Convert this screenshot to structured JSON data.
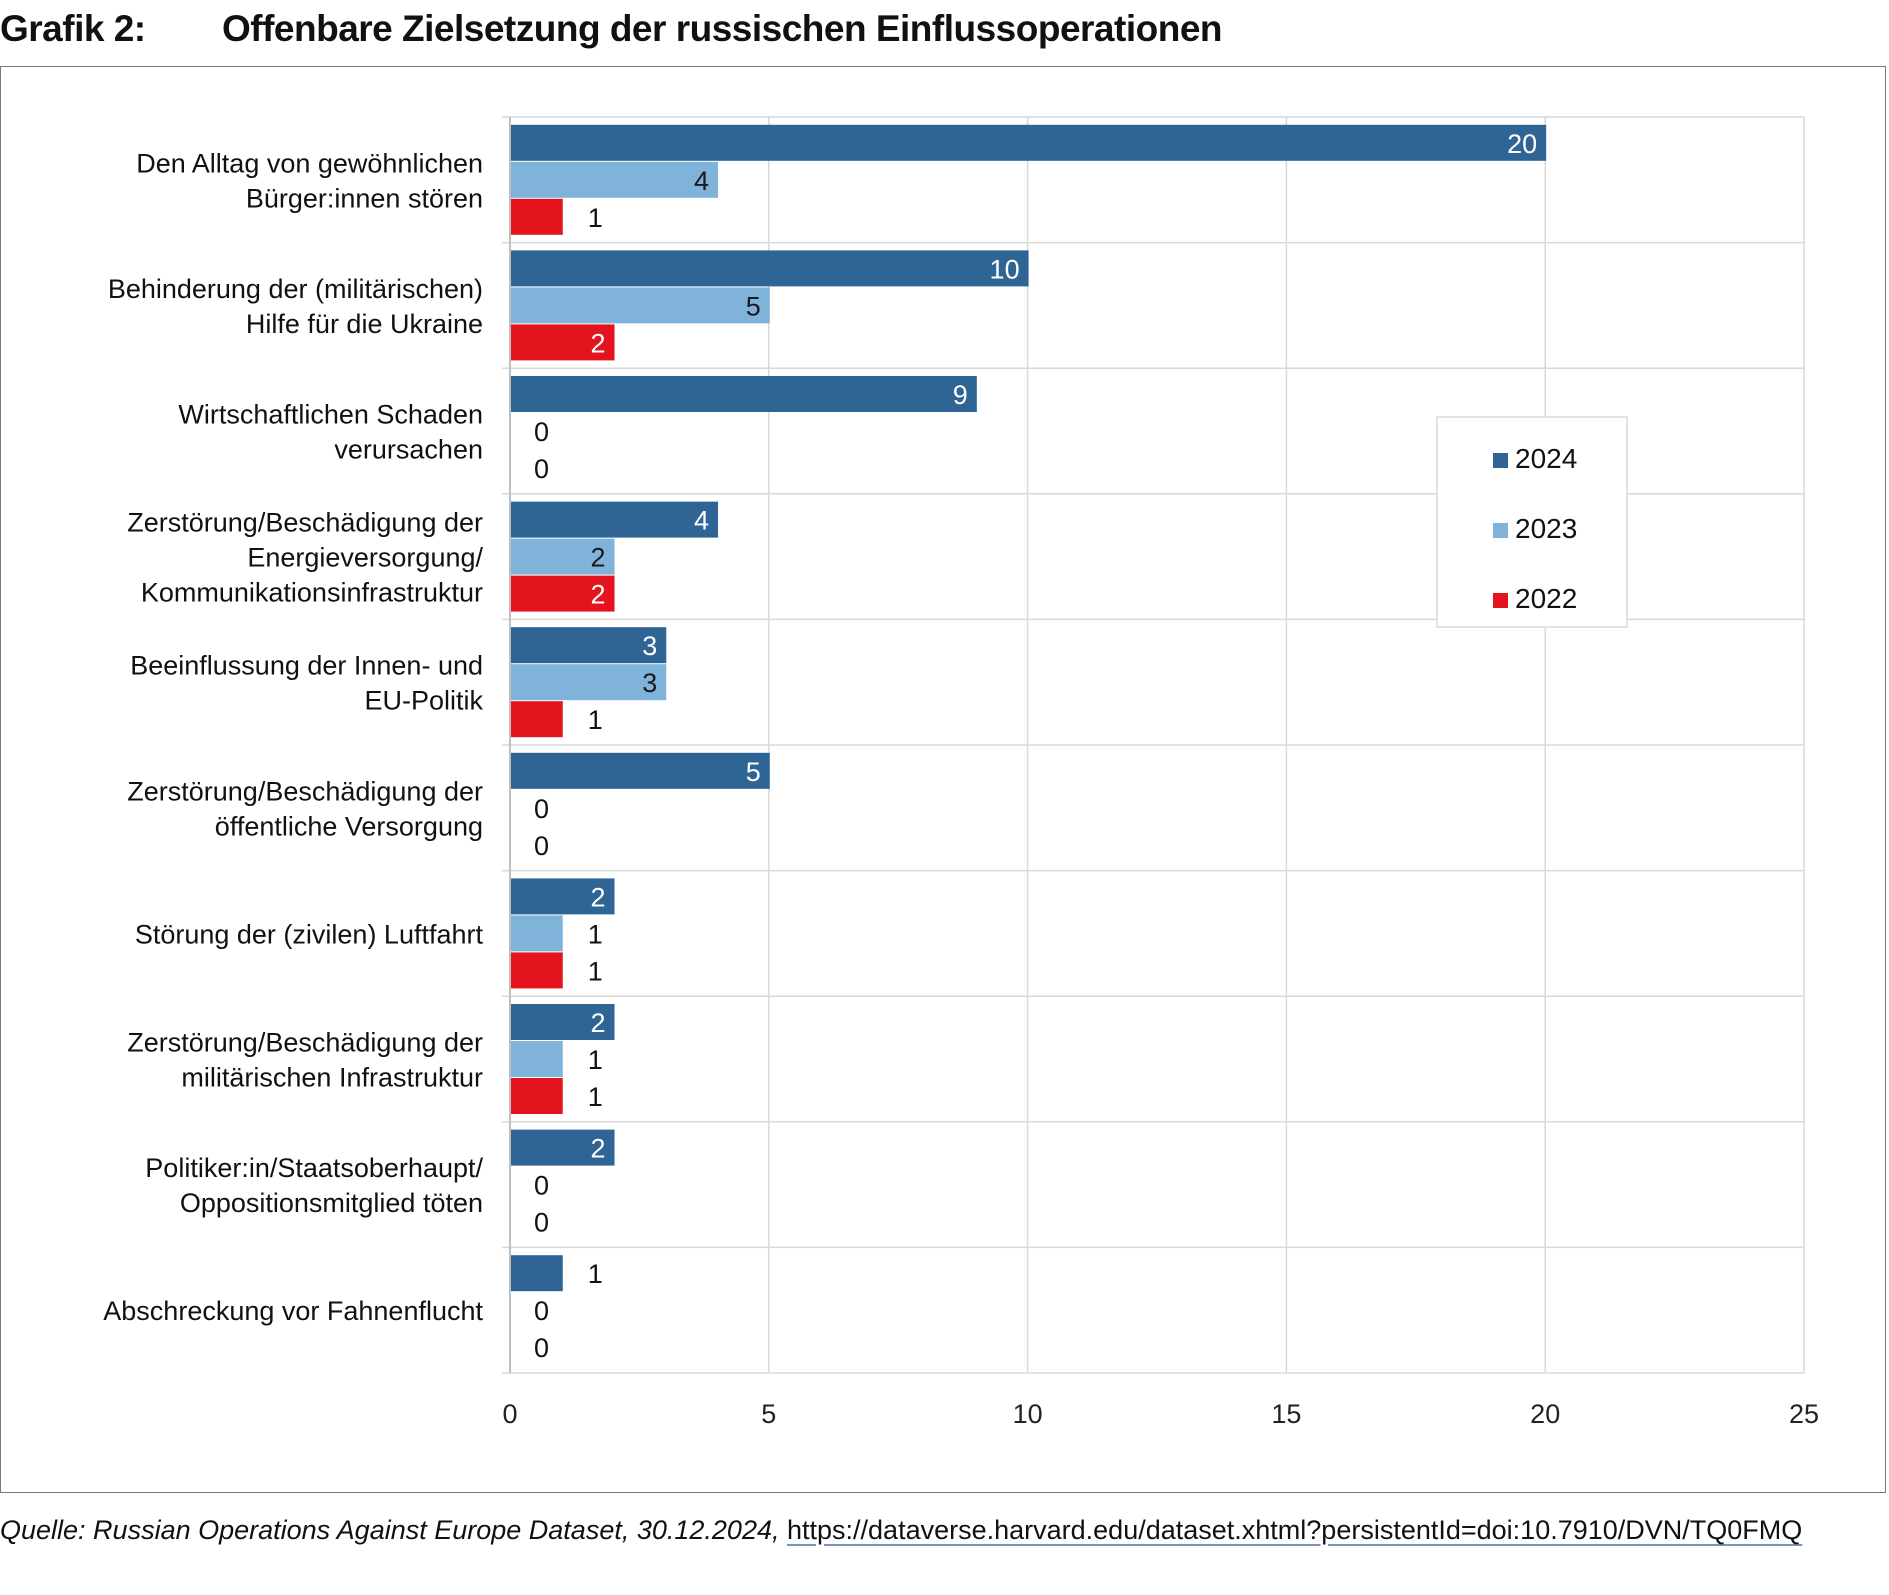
{
  "header": {
    "figure_number": "Grafik 2:",
    "title": "Offenbare Zielsetzung der russischen Einflussoperationen"
  },
  "source": {
    "italic": "Quelle: Russian Operations Against Europe Dataset, 30.12.2024,",
    "link": "https://dataverse.harvard.edu/dataset.xhtml?persistentId=doi:10.7910/DVN/TQ0FMQ"
  },
  "chart_data": {
    "type": "bar",
    "orientation": "horizontal",
    "title": "Offenbare Zielsetzung der russischen Einflussoperationen",
    "xlabel": "",
    "ylabel": "",
    "xlim": [
      0,
      25
    ],
    "xticks": [
      0,
      5,
      10,
      15,
      20,
      25
    ],
    "grid": true,
    "legend_position": "right",
    "categories": [
      [
        "Den Alltag von gewöhnlichen",
        "Bürger:innen stören"
      ],
      [
        "Behinderung der (militärischen)",
        "Hilfe für die Ukraine"
      ],
      [
        "Wirtschaftlichen Schaden",
        "verursachen"
      ],
      [
        "Zerstörung/Beschädigung der",
        "Energieversorgung/",
        "Kommunikationsinfrastruktur"
      ],
      [
        "Beeinflussung der Innen- und",
        "EU-Politik"
      ],
      [
        "Zerstörung/Beschädigung der",
        "öffentliche Versorgung"
      ],
      [
        "Störung der (zivilen) Luftfahrt"
      ],
      [
        "Zerstörung/Beschädigung der",
        "militärischen Infrastruktur"
      ],
      [
        "Politiker:in/Staatsoberhaupt/",
        "Oppositionsmitglied töten"
      ],
      [
        "Abschreckung vor Fahnenflucht"
      ]
    ],
    "series": [
      {
        "name": "2024",
        "color": "#2e6594",
        "values": [
          20,
          10,
          9,
          4,
          3,
          5,
          2,
          2,
          2,
          1
        ]
      },
      {
        "name": "2023",
        "color": "#80b3da",
        "values": [
          4,
          5,
          0,
          2,
          3,
          0,
          1,
          1,
          0,
          0
        ]
      },
      {
        "name": "2022",
        "color": "#e3141d",
        "values": [
          1,
          2,
          0,
          2,
          1,
          0,
          1,
          1,
          0,
          0
        ]
      }
    ]
  }
}
